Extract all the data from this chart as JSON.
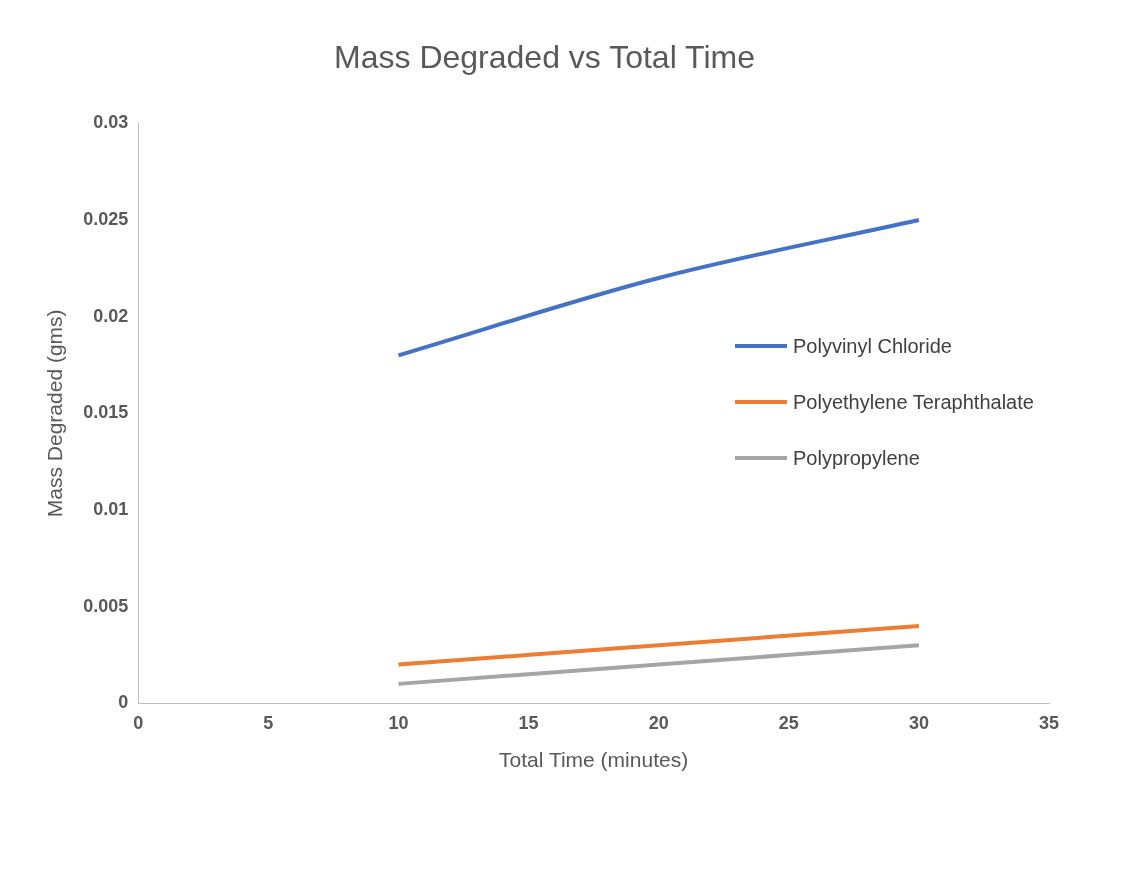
{
  "chart_data": {
    "type": "line",
    "title": "Mass Degraded vs Total Time",
    "xlabel": "Total Time (minutes)",
    "ylabel": "Mass Degraded (gms)",
    "x": [
      10,
      20,
      30
    ],
    "series": [
      {
        "name": "Polyvinyl Chloride",
        "color": "#4472c4",
        "values": [
          0.018,
          0.022,
          0.025
        ]
      },
      {
        "name": "Polyethylene Teraphthalate",
        "color": "#ed7d31",
        "values": [
          0.002,
          0.003,
          0.004
        ]
      },
      {
        "name": "Polypropylene",
        "color": "#a5a5a5",
        "values": [
          0.001,
          0.002,
          0.003
        ]
      }
    ],
    "xlim": [
      0,
      35
    ],
    "xticks": [
      0,
      5,
      10,
      15,
      20,
      25,
      30,
      35
    ],
    "ylim": [
      0,
      0.03
    ],
    "yticks": [
      0,
      0.005,
      0.01,
      0.015,
      0.02,
      0.025,
      0.03
    ],
    "grid": false,
    "legend": "right",
    "marker": "none",
    "line_style": "solid"
  }
}
